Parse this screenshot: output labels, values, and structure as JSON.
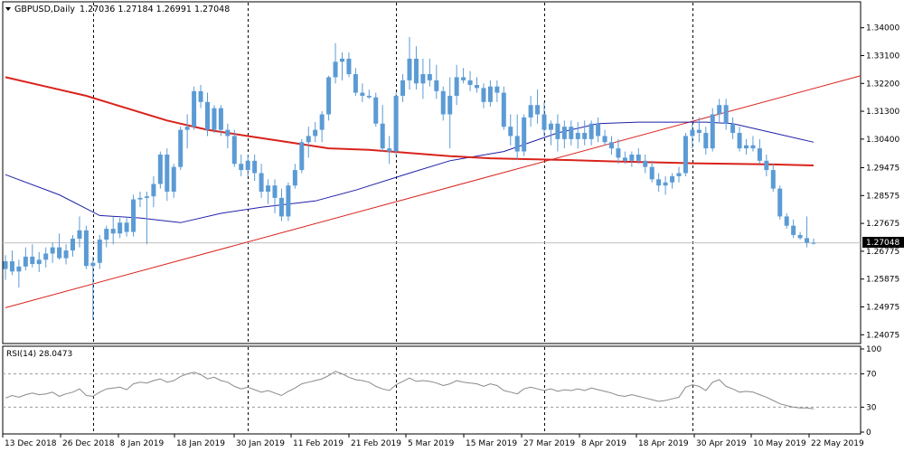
{
  "chart_data": {
    "type": "candlestick",
    "symbol": "GBPUSD",
    "timeframe": "Daily",
    "ohlc_header": {
      "open": "1.27036",
      "high": "1.27184",
      "low": "1.26991",
      "close": "1.27048"
    },
    "current_price": "1.27048",
    "ylim": [
      1.2385,
      1.344
    ],
    "y_ticks": [
      "1.34000",
      "1.33100",
      "1.32200",
      "1.31300",
      "1.30400",
      "1.29475",
      "1.28575",
      "1.27675",
      "1.26775",
      "1.25875",
      "1.24975",
      "1.24075"
    ],
    "x_ticks": [
      "13 Dec 2018",
      "26 Dec 2018",
      "8 Jan 2019",
      "18 Jan 2019",
      "30 Jan 2019",
      "11 Feb 2019",
      "21 Feb 2019",
      "5 Mar 2019",
      "15 Mar 2019",
      "27 Mar 2019",
      "8 Apr 2019",
      "18 Apr 2019",
      "30 Apr 2019",
      "10 May 2019",
      "22 May 2019"
    ],
    "colors": {
      "candle": "#5b9bd5",
      "ma_slow": "#d9231c",
      "ma_fast": "#1f1fa8",
      "trendline": "#d9231c",
      "rsi": "#8a8a8a",
      "grid": "#000000",
      "current_line": "#c0c0c0"
    },
    "candles": [
      [
        1.262,
        1.2665,
        1.2585,
        1.2645
      ],
      [
        1.2645,
        1.268,
        1.26,
        1.2612
      ],
      [
        1.2612,
        1.265,
        1.256,
        1.2628
      ],
      [
        1.2628,
        1.269,
        1.2615,
        1.266
      ],
      [
        1.266,
        1.27,
        1.2625,
        1.2636
      ],
      [
        1.2636,
        1.2675,
        1.261,
        1.265
      ],
      [
        1.265,
        1.269,
        1.2625,
        1.267
      ],
      [
        1.267,
        1.2705,
        1.264,
        1.269
      ],
      [
        1.269,
        1.2735,
        1.265,
        1.2655
      ],
      [
        1.2655,
        1.27,
        1.2635,
        1.268
      ],
      [
        1.268,
        1.273,
        1.266,
        1.2718
      ],
      [
        1.2718,
        1.279,
        1.269,
        1.2745
      ],
      [
        1.2745,
        1.276,
        1.262,
        1.263
      ],
      [
        1.263,
        1.266,
        1.2455,
        1.264
      ],
      [
        1.264,
        1.273,
        1.262,
        1.2715
      ],
      [
        1.2715,
        1.276,
        1.269,
        1.275
      ],
      [
        1.275,
        1.279,
        1.27,
        1.2735
      ],
      [
        1.2735,
        1.2785,
        1.272,
        1.277
      ],
      [
        1.277,
        1.279,
        1.2725,
        1.274
      ],
      [
        1.274,
        1.286,
        1.2725,
        1.2845
      ],
      [
        1.2845,
        1.287,
        1.282,
        1.285
      ],
      [
        1.285,
        1.287,
        1.27,
        1.2855
      ],
      [
        1.2855,
        1.292,
        1.282,
        1.2895
      ],
      [
        1.2895,
        1.3,
        1.288,
        1.299
      ],
      [
        1.299,
        1.301,
        1.284,
        1.287
      ],
      [
        1.287,
        1.296,
        1.285,
        1.295
      ],
      [
        1.295,
        1.308,
        1.294,
        1.307
      ],
      [
        1.307,
        1.312,
        1.301,
        1.308
      ],
      [
        1.308,
        1.321,
        1.307,
        1.3195
      ],
      [
        1.3195,
        1.3215,
        1.314,
        1.316
      ],
      [
        1.316,
        1.319,
        1.305,
        1.307
      ],
      [
        1.307,
        1.315,
        1.306,
        1.314
      ],
      [
        1.314,
        1.315,
        1.305,
        1.307
      ],
      [
        1.307,
        1.309,
        1.301,
        1.305
      ],
      [
        1.305,
        1.307,
        1.295,
        1.296
      ],
      [
        1.296,
        1.299,
        1.292,
        1.294
      ],
      [
        1.294,
        1.299,
        1.292,
        1.297
      ],
      [
        1.297,
        1.299,
        1.2905,
        1.293
      ],
      [
        1.293,
        1.296,
        1.285,
        1.287
      ],
      [
        1.287,
        1.291,
        1.283,
        1.289
      ],
      [
        1.289,
        1.291,
        1.28,
        1.285
      ],
      [
        1.285,
        1.288,
        1.2775,
        1.279
      ],
      [
        1.279,
        1.29,
        1.2775,
        1.289
      ],
      [
        1.289,
        1.296,
        1.288,
        1.294
      ],
      [
        1.294,
        1.304,
        1.293,
        1.303
      ],
      [
        1.303,
        1.308,
        1.298,
        1.305
      ],
      [
        1.305,
        1.3095,
        1.303,
        1.307
      ],
      [
        1.307,
        1.313,
        1.303,
        1.312
      ],
      [
        1.312,
        1.3245,
        1.31,
        1.324
      ],
      [
        1.324,
        1.335,
        1.322,
        1.329
      ],
      [
        1.329,
        1.332,
        1.323,
        1.33
      ],
      [
        1.33,
        1.332,
        1.324,
        1.325
      ],
      [
        1.325,
        1.327,
        1.318,
        1.319
      ],
      [
        1.319,
        1.322,
        1.316,
        1.318
      ],
      [
        1.318,
        1.32,
        1.317,
        1.3175
      ],
      [
        1.3175,
        1.319,
        1.308,
        1.309
      ],
      [
        1.309,
        1.315,
        1.3,
        1.301
      ],
      [
        1.301,
        1.305,
        1.296,
        1.3
      ],
      [
        1.3,
        1.319,
        1.2985,
        1.318
      ],
      [
        1.318,
        1.325,
        1.316,
        1.323
      ],
      [
        1.323,
        1.337,
        1.32,
        1.33
      ],
      [
        1.33,
        1.334,
        1.32,
        1.322
      ],
      [
        1.322,
        1.33,
        1.317,
        1.325
      ],
      [
        1.325,
        1.33,
        1.321,
        1.323
      ],
      [
        1.323,
        1.328,
        1.317,
        1.3195
      ],
      [
        1.3195,
        1.321,
        1.31,
        1.312
      ],
      [
        1.312,
        1.324,
        1.301,
        1.318
      ],
      [
        1.318,
        1.328,
        1.315,
        1.324
      ],
      [
        1.324,
        1.327,
        1.322,
        1.323
      ],
      [
        1.323,
        1.326,
        1.3195,
        1.3215
      ],
      [
        1.3215,
        1.324,
        1.319,
        1.3205
      ],
      [
        1.3205,
        1.322,
        1.314,
        1.316
      ],
      [
        1.316,
        1.323,
        1.3145,
        1.321
      ],
      [
        1.321,
        1.323,
        1.316,
        1.319
      ],
      [
        1.319,
        1.321,
        1.307,
        1.308
      ],
      [
        1.308,
        1.312,
        1.302,
        1.305
      ],
      [
        1.305,
        1.312,
        1.2975,
        1.3
      ],
      [
        1.3,
        1.312,
        1.2985,
        1.311
      ],
      [
        1.311,
        1.318,
        1.308,
        1.315
      ],
      [
        1.315,
        1.32,
        1.309,
        1.312
      ],
      [
        1.312,
        1.316,
        1.305,
        1.307
      ],
      [
        1.307,
        1.31,
        1.302,
        1.309
      ],
      [
        1.309,
        1.312,
        1.3,
        1.304
      ],
      [
        1.304,
        1.31,
        1.301,
        1.308
      ],
      [
        1.308,
        1.31,
        1.302,
        1.304
      ],
      [
        1.304,
        1.3095,
        1.301,
        1.306
      ],
      [
        1.306,
        1.31,
        1.302,
        1.304
      ],
      [
        1.304,
        1.31,
        1.302,
        1.309
      ],
      [
        1.309,
        1.311,
        1.303,
        1.305
      ],
      [
        1.305,
        1.307,
        1.302,
        1.303
      ],
      [
        1.303,
        1.305,
        1.299,
        1.301
      ],
      [
        1.301,
        1.304,
        1.296,
        1.298
      ],
      [
        1.298,
        1.3,
        1.296,
        1.297
      ],
      [
        1.297,
        1.3,
        1.295,
        1.299
      ],
      [
        1.299,
        1.301,
        1.296,
        1.297
      ],
      [
        1.297,
        1.299,
        1.293,
        1.295
      ],
      [
        1.295,
        1.297,
        1.29,
        1.291
      ],
      [
        1.291,
        1.293,
        1.287,
        1.289
      ],
      [
        1.289,
        1.292,
        1.286,
        1.29
      ],
      [
        1.29,
        1.293,
        1.288,
        1.292
      ],
      [
        1.292,
        1.295,
        1.29,
        1.293
      ],
      [
        1.293,
        1.306,
        1.292,
        1.305
      ],
      [
        1.305,
        1.309,
        1.301,
        1.307
      ],
      [
        1.307,
        1.311,
        1.303,
        1.306
      ],
      [
        1.306,
        1.308,
        1.299,
        1.301
      ],
      [
        1.301,
        1.314,
        1.3,
        1.312
      ],
      [
        1.312,
        1.317,
        1.309,
        1.315
      ],
      [
        1.315,
        1.317,
        1.307,
        1.309
      ],
      [
        1.309,
        1.311,
        1.304,
        1.306
      ],
      [
        1.306,
        1.308,
        1.3,
        1.301
      ],
      [
        1.301,
        1.304,
        1.299,
        1.302
      ],
      [
        1.302,
        1.305,
        1.3,
        1.301
      ],
      [
        1.301,
        1.304,
        1.296,
        1.297
      ],
      [
        1.297,
        1.299,
        1.292,
        1.294
      ],
      [
        1.294,
        1.296,
        1.287,
        1.288
      ],
      [
        1.288,
        1.289,
        1.278,
        1.279
      ],
      [
        1.279,
        1.28,
        1.275,
        1.276
      ],
      [
        1.276,
        1.278,
        1.272,
        1.273
      ],
      [
        1.273,
        1.274,
        1.2715,
        1.272
      ],
      [
        1.272,
        1.279,
        1.269,
        1.2705
      ],
      [
        1.27036,
        1.27184,
        1.26991,
        1.27048
      ]
    ],
    "ma_fast": [
      [
        0,
        1.2925
      ],
      [
        8,
        1.286
      ],
      [
        14,
        1.2793
      ],
      [
        20,
        1.2785
      ],
      [
        26,
        1.277
      ],
      [
        32,
        1.28
      ],
      [
        38,
        1.282
      ],
      [
        46,
        1.284
      ],
      [
        52,
        1.2875
      ],
      [
        60,
        1.293
      ],
      [
        66,
        1.297
      ],
      [
        74,
        1.3
      ],
      [
        82,
        1.306
      ],
      [
        88,
        1.309
      ],
      [
        94,
        1.3095
      ],
      [
        104,
        1.3095
      ],
      [
        108,
        1.309
      ],
      [
        114,
        1.306
      ],
      [
        120,
        1.303
      ]
    ],
    "ma_slow": [
      [
        0,
        1.324
      ],
      [
        6,
        1.321
      ],
      [
        12,
        1.318
      ],
      [
        18,
        1.314
      ],
      [
        24,
        1.31
      ],
      [
        30,
        1.307
      ],
      [
        36,
        1.305
      ],
      [
        42,
        1.303
      ],
      [
        48,
        1.301
      ],
      [
        54,
        1.3005
      ],
      [
        60,
        1.2995
      ],
      [
        66,
        1.2985
      ],
      [
        72,
        1.2978
      ],
      [
        78,
        1.2975
      ],
      [
        84,
        1.2972
      ],
      [
        90,
        1.2968
      ],
      [
        96,
        1.2965
      ],
      [
        102,
        1.2962
      ],
      [
        108,
        1.296
      ],
      [
        114,
        1.2958
      ],
      [
        120,
        1.2955
      ]
    ],
    "trendline": [
      [
        0,
        1.2495
      ],
      [
        127,
        1.3245
      ]
    ],
    "rsi": {
      "label": "RSI(14)",
      "value": "28.0473",
      "ylim": [
        0,
        100
      ],
      "levels": [
        30,
        70
      ],
      "y_ticks": [
        "100",
        "70",
        "30",
        "0"
      ],
      "values": [
        41,
        44,
        42,
        45,
        47,
        45,
        46,
        48,
        43,
        46,
        48,
        52,
        44,
        43,
        48,
        52,
        53,
        54,
        51,
        58,
        60,
        59,
        62,
        64,
        60,
        62,
        67,
        70,
        72,
        69,
        64,
        66,
        62,
        60,
        55,
        52,
        54,
        51,
        48,
        50,
        47,
        44,
        49,
        53,
        58,
        60,
        62,
        64,
        68,
        73,
        70,
        66,
        63,
        62,
        60,
        55,
        52,
        50,
        57,
        61,
        65,
        61,
        62,
        61,
        59,
        56,
        58,
        62,
        60,
        59,
        58,
        55,
        58,
        56,
        50,
        48,
        46,
        52,
        54,
        52,
        50,
        52,
        49,
        51,
        50,
        52,
        50,
        53,
        51,
        49,
        47,
        44,
        43,
        45,
        43,
        41,
        39,
        37,
        38,
        40,
        42,
        54,
        57,
        55,
        50,
        60,
        63,
        55,
        52,
        48,
        49,
        48,
        45,
        42,
        38,
        34,
        32,
        30,
        29,
        29,
        28
      ]
    }
  }
}
